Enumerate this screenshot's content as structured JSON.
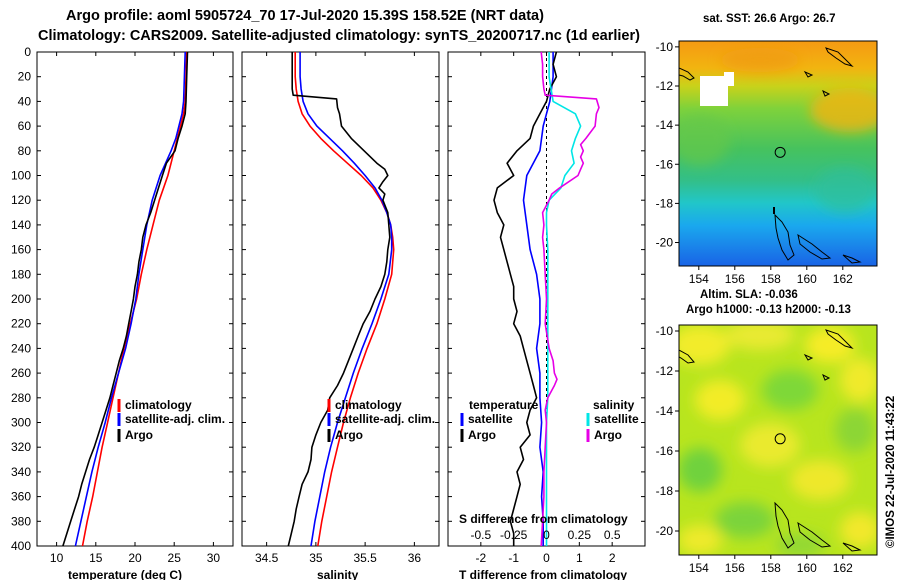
{
  "title_line1": "Argo profile: aoml 5905724_70 17-Jul-2020 15.39S 158.52E (NRT data)",
  "title_line2": "Climatology: CARS2009. Satellite-adjusted climatology: synTS_20200717.nc (1d earlier)",
  "watermark": "©IMOS 22-Jul-2020 11:43:22",
  "colors": {
    "climatology": "#ff0000",
    "satellite_adj": "#0000ff",
    "argo": "#000000",
    "sal_satellite": "#00e6e6",
    "sal_argo": "#e600e6"
  },
  "depth_ticks": [
    "0",
    "20",
    "40",
    "60",
    "80",
    "100",
    "120",
    "140",
    "160",
    "180",
    "200",
    "220",
    "240",
    "260",
    "280",
    "300",
    "320",
    "340",
    "360",
    "380",
    "400"
  ],
  "chart_data": [
    {
      "type": "line",
      "name": "temperature",
      "xlabel": "temperature (deg C)",
      "ylabel": "",
      "xlim": [
        7.5,
        32.5
      ],
      "ylim": [
        400,
        0
      ],
      "x_ticks": [
        "10",
        "15",
        "20",
        "25",
        "30"
      ],
      "x_tick_values": [
        10,
        15,
        20,
        25,
        30
      ],
      "legend": [
        "climatology",
        "satellite-adj. clim.",
        "Argo"
      ],
      "series": [
        {
          "name": "climatology",
          "color": "#ff0000",
          "depth": [
            0,
            20,
            40,
            50,
            60,
            70,
            80,
            100,
            120,
            140,
            160,
            180,
            200,
            220,
            240,
            260,
            280,
            300,
            320,
            340,
            360,
            380,
            400
          ],
          "values": [
            26.6,
            26.5,
            26.4,
            26.2,
            25.8,
            25.4,
            25.0,
            24.2,
            23.1,
            22.3,
            21.5,
            20.8,
            20.2,
            19.4,
            18.6,
            17.9,
            17.2,
            16.5,
            15.8,
            15.2,
            14.6,
            13.9,
            13.3
          ]
        },
        {
          "name": "satellite-adj. clim.",
          "color": "#0000ff",
          "depth": [
            0,
            20,
            40,
            50,
            60,
            70,
            80,
            100,
            120,
            140,
            160,
            180,
            200,
            220,
            240,
            260,
            280,
            300,
            320,
            340,
            360,
            380,
            400
          ],
          "values": [
            26.4,
            26.3,
            26.2,
            26.0,
            25.6,
            25.2,
            24.6,
            23.2,
            22.2,
            21.5,
            21.0,
            20.5,
            20.1,
            19.5,
            18.8,
            17.9,
            17.0,
            16.2,
            15.3,
            14.5,
            13.8,
            13.1,
            12.4
          ]
        },
        {
          "name": "Argo",
          "color": "#000000",
          "depth": [
            0,
            20,
            40,
            50,
            60,
            70,
            80,
            90,
            100,
            110,
            120,
            130,
            140,
            150,
            160,
            170,
            180,
            190,
            200,
            210,
            220,
            230,
            240,
            250,
            260,
            270,
            280,
            290,
            300,
            310,
            320,
            330,
            340,
            350,
            360,
            370,
            380,
            390,
            400
          ],
          "values": [
            26.7,
            26.6,
            26.5,
            26.4,
            26.0,
            25.5,
            25.1,
            24.0,
            23.5,
            23.0,
            22.5,
            22.0,
            21.4,
            21.0,
            20.8,
            20.5,
            20.3,
            20.0,
            19.8,
            19.5,
            19.2,
            18.9,
            18.5,
            18.0,
            17.6,
            17.2,
            16.8,
            16.3,
            15.8,
            15.3,
            14.8,
            14.2,
            13.7,
            13.2,
            12.8,
            12.3,
            11.8,
            11.3,
            10.8
          ]
        }
      ]
    },
    {
      "type": "line",
      "name": "salinity",
      "xlabel": "salinity",
      "ylabel": "",
      "xlim": [
        34.25,
        36.25
      ],
      "ylim": [
        400,
        0
      ],
      "x_ticks": [
        "34.5",
        "35",
        "35.5",
        "36"
      ],
      "x_tick_values": [
        34.5,
        35,
        35.5,
        36
      ],
      "legend": [
        "climatology",
        "satellite-adj. clim.",
        "Argo"
      ],
      "series": [
        {
          "name": "climatology",
          "color": "#ff0000",
          "depth": [
            0,
            20,
            30,
            40,
            50,
            60,
            70,
            80,
            90,
            100,
            110,
            120,
            130,
            140,
            150,
            160,
            180,
            200,
            220,
            240,
            260,
            280,
            300,
            320,
            340,
            360,
            380,
            400
          ],
          "values": [
            34.79,
            34.79,
            34.8,
            34.82,
            34.86,
            34.94,
            35.05,
            35.18,
            35.32,
            35.46,
            35.58,
            35.66,
            35.72,
            35.76,
            35.78,
            35.79,
            35.77,
            35.7,
            35.62,
            35.52,
            35.43,
            35.35,
            35.28,
            35.22,
            35.16,
            35.11,
            35.06,
            35.02
          ]
        },
        {
          "name": "satellite-adj. clim.",
          "color": "#0000ff",
          "depth": [
            0,
            20,
            30,
            40,
            50,
            60,
            70,
            80,
            90,
            100,
            110,
            120,
            130,
            140,
            150,
            160,
            180,
            200,
            220,
            240,
            260,
            280,
            300,
            320,
            340,
            360,
            380,
            400
          ],
          "values": [
            34.84,
            34.84,
            34.85,
            34.87,
            34.92,
            35.01,
            35.14,
            35.27,
            35.39,
            35.5,
            35.6,
            35.67,
            35.72,
            35.76,
            35.77,
            35.77,
            35.74,
            35.66,
            35.57,
            35.47,
            35.38,
            35.3,
            35.22,
            35.15,
            35.09,
            35.04,
            34.99,
            34.95
          ]
        },
        {
          "name": "Argo",
          "color": "#000000",
          "depth": [
            0,
            10,
            20,
            30,
            35,
            38,
            45,
            50,
            55,
            60,
            70,
            80,
            90,
            95,
            100,
            105,
            110,
            115,
            120,
            130,
            140,
            150,
            160,
            170,
            180,
            190,
            200,
            210,
            220,
            230,
            240,
            250,
            260,
            270,
            280,
            290,
            300,
            310,
            320,
            330,
            340,
            350,
            360,
            370,
            380,
            390,
            400
          ],
          "values": [
            34.76,
            34.76,
            34.76,
            34.76,
            34.77,
            35.21,
            35.22,
            35.24,
            35.25,
            35.26,
            35.36,
            35.49,
            35.62,
            35.7,
            35.73,
            35.68,
            35.64,
            35.7,
            35.68,
            35.73,
            35.74,
            35.75,
            35.73,
            35.72,
            35.7,
            35.66,
            35.6,
            35.55,
            35.48,
            35.43,
            35.38,
            35.33,
            35.28,
            35.22,
            35.14,
            35.12,
            35.05,
            35.0,
            34.96,
            34.95,
            34.92,
            34.86,
            34.83,
            34.8,
            34.78,
            34.75,
            34.72
          ]
        }
      ]
    },
    {
      "type": "line",
      "name": "differences",
      "xlabel": "T difference from climatology",
      "x_top_label": "S difference from climatology",
      "xlim": [
        -3,
        3
      ],
      "ylim": [
        400,
        0
      ],
      "x_ticks": [
        "-2",
        "-1",
        "0",
        "1",
        "2"
      ],
      "x_tick_values": [
        -2,
        -1,
        0,
        1,
        2
      ],
      "x_top_ticks": [
        "-0.5",
        "-0.25",
        "0",
        "0.25",
        "0.5"
      ],
      "legend_temperature_title": "temperature",
      "legend_salinity_title": "salinity",
      "legend_temperature": [
        "satellite",
        "Argo"
      ],
      "legend_salinity": [
        "satellite",
        "Argo"
      ],
      "series": [
        {
          "name": "T satellite",
          "color": "#0000ff",
          "units": "deg C",
          "depth": [
            0,
            20,
            40,
            60,
            80,
            100,
            120,
            140,
            160,
            180,
            200,
            220,
            240,
            260,
            280,
            300,
            320,
            340,
            360,
            380,
            400
          ],
          "values": [
            0.2,
            0.2,
            0.1,
            -0.1,
            -0.2,
            -0.6,
            -0.7,
            -0.6,
            -0.5,
            -0.3,
            -0.2,
            -0.2,
            -0.3,
            -0.2,
            -0.2,
            -0.15,
            -0.2,
            -0.1,
            -0.15,
            -0.1,
            -0.1
          ]
        },
        {
          "name": "T Argo",
          "color": "#000000",
          "units": "deg C",
          "depth": [
            0,
            10,
            20,
            30,
            40,
            50,
            60,
            70,
            80,
            90,
            100,
            110,
            120,
            130,
            140,
            150,
            160,
            170,
            180,
            190,
            200,
            210,
            220,
            230,
            240,
            250,
            260,
            270,
            280,
            290,
            300,
            310,
            320,
            330,
            340,
            350,
            360,
            370,
            380,
            390,
            400
          ],
          "values": [
            0.3,
            0.2,
            0.3,
            0.1,
            0.0,
            -0.2,
            -0.4,
            -0.5,
            -0.9,
            -1.2,
            -1.0,
            -1.5,
            -1.6,
            -1.5,
            -1.3,
            -1.4,
            -1.3,
            -1.2,
            -1.1,
            -1.0,
            -1.0,
            -0.9,
            -1.0,
            -0.8,
            -0.7,
            -0.6,
            -0.5,
            -0.4,
            -0.3,
            -0.5,
            -0.6,
            -0.5,
            -0.8,
            -0.7,
            -0.9,
            -0.8,
            -0.9,
            -1.0,
            -1.1,
            -1.0,
            -1.0
          ]
        },
        {
          "name": "S satellite",
          "color": "#00e6e6",
          "units": "psu",
          "depth": [
            0,
            20,
            40,
            50,
            60,
            70,
            80,
            90,
            100,
            110,
            120,
            130,
            140,
            160,
            180,
            200,
            220,
            240,
            260,
            280,
            300,
            320,
            340,
            360,
            380,
            400
          ],
          "values": [
            0.02,
            0.02,
            0.05,
            0.22,
            0.26,
            0.22,
            0.19,
            0.21,
            0.14,
            0.11,
            0.02,
            0.0,
            0.0,
            0.01,
            0.01,
            0.01,
            0.01,
            0.01,
            0.01,
            0.01,
            0.0,
            0.0,
            0.0,
            0.0,
            0.0,
            0.0
          ]
        },
        {
          "name": "S Argo",
          "color": "#e600e6",
          "units": "psu",
          "depth": [
            0,
            10,
            20,
            30,
            35,
            38,
            45,
            50,
            60,
            70,
            75,
            80,
            85,
            90,
            95,
            100,
            110,
            115,
            120,
            130,
            140,
            150,
            160,
            180,
            200,
            220,
            240,
            250,
            260,
            265,
            270,
            280,
            290,
            300,
            320,
            340,
            360,
            380,
            400
          ],
          "values": [
            -0.04,
            -0.03,
            -0.03,
            -0.02,
            -0.01,
            0.38,
            0.4,
            0.38,
            0.37,
            0.3,
            0.26,
            0.28,
            0.26,
            0.28,
            0.26,
            0.24,
            0.1,
            0.04,
            0.02,
            -0.03,
            -0.02,
            -0.03,
            -0.02,
            -0.01,
            0.0,
            -0.01,
            0.02,
            0.05,
            0.06,
            0.08,
            0.06,
            0.01,
            -0.01,
            0.0,
            -0.01,
            -0.02,
            -0.02,
            -0.03,
            -0.04
          ]
        }
      ]
    },
    {
      "type": "heatmap",
      "name": "sst_map",
      "title": "sat. SST: 26.6 Argo: 26.7",
      "x_ticks": [
        "154",
        "156",
        "158",
        "160",
        "162"
      ],
      "x_tick_values": [
        154,
        156,
        158,
        160,
        162
      ],
      "y_ticks": [
        "-10",
        "-12",
        "-14",
        "-16",
        "-18",
        "-20"
      ],
      "y_tick_values": [
        -10,
        -12,
        -14,
        -16,
        -18,
        -20
      ],
      "xlim": [
        152.9,
        163.9
      ],
      "ylim": [
        -21.2,
        -9.7
      ],
      "argo_lon": 158.52,
      "argo_lat": -15.39
    },
    {
      "type": "heatmap",
      "name": "sla_map",
      "title_line1": "Altim. SLA: -0.036",
      "title_line2": "Argo h1000: -0.13 h2000: -0.13",
      "x_ticks": [
        "154",
        "156",
        "158",
        "160",
        "162"
      ],
      "x_tick_values": [
        154,
        156,
        158,
        160,
        162
      ],
      "y_ticks": [
        "-10",
        "-12",
        "-14",
        "-16",
        "-18",
        "-20"
      ],
      "y_tick_values": [
        -10,
        -12,
        -14,
        -16,
        -18,
        -20
      ],
      "xlim": [
        152.9,
        163.9
      ],
      "ylim": [
        -21.2,
        -9.7
      ],
      "argo_lon": 158.52,
      "argo_lat": -15.39
    }
  ]
}
